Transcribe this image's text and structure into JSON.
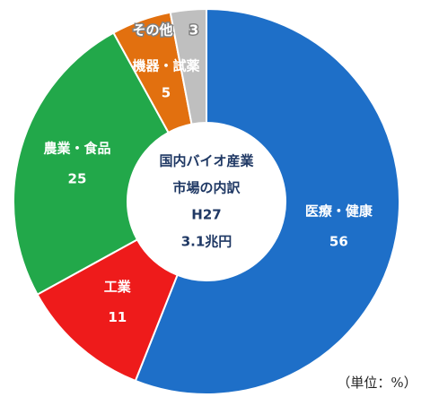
{
  "chart_data": {
    "type": "pie",
    "categories": [
      "医療・健康",
      "工業",
      "農業・食品",
      "機器・試薬",
      "その他"
    ],
    "values": [
      56,
      11,
      25,
      5,
      3
    ],
    "colors": [
      "#1e6fc8",
      "#ee1b1b",
      "#22a84a",
      "#e2700f",
      "#bfbfbf"
    ],
    "center_text": [
      "国内バイオ産業",
      "市場の内訳",
      "H27",
      "3.1兆円"
    ],
    "unit_note": "（単位：%）"
  }
}
